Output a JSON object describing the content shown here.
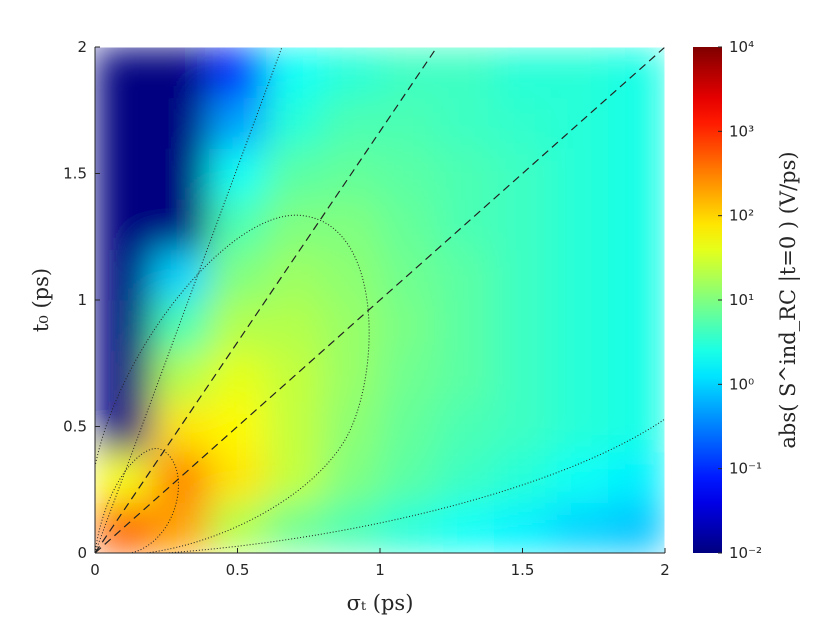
{
  "chart_data": {
    "type": "heatmap",
    "colormap": "jet",
    "x_label": "σₜ (ps)",
    "y_label": "t₀ (ps)",
    "colorbar_label": "abs( S^ind_RC |t=0 ) (V/ps)",
    "x": [
      0.1,
      0.3,
      0.5,
      0.7,
      0.9,
      1.1,
      1.3,
      1.5,
      1.7,
      1.9
    ],
    "y": [
      0.1,
      0.3,
      0.5,
      0.7,
      0.9,
      1.1,
      1.3,
      1.5,
      1.7,
      1.9
    ],
    "z": [
      [
        500,
        200,
        20,
        8,
        5,
        3,
        2,
        1.5,
        1,
        0.8
      ],
      [
        50,
        300,
        80,
        25,
        10,
        6,
        4,
        3,
        2,
        1.5
      ],
      [
        0.01,
        80,
        60,
        25,
        12,
        7,
        5,
        4,
        3,
        2.5
      ],
      [
        0.01,
        20,
        40,
        25,
        14,
        8,
        6,
        4,
        3,
        2.5
      ],
      [
        0.01,
        5,
        20,
        20,
        14,
        9,
        6,
        4,
        3,
        2.5
      ],
      [
        0.01,
        1,
        10,
        15,
        12,
        8,
        6,
        4,
        3,
        2.5
      ],
      [
        0.01,
        0.01,
        5,
        10,
        10,
        7,
        5,
        4,
        3,
        2.5
      ],
      [
        0.01,
        0.01,
        2,
        6,
        7,
        6,
        5,
        4,
        3,
        2.5
      ],
      [
        0.01,
        0.01,
        0.5,
        3,
        5,
        5,
        4,
        3.5,
        3,
        2.5
      ],
      [
        0.01,
        0.01,
        0.1,
        2,
        3,
        4,
        4,
        3,
        3,
        2.5
      ]
    ],
    "xlim": [
      0,
      2
    ],
    "ylim": [
      0,
      2
    ],
    "xticks": [
      0,
      0.5,
      1,
      1.5,
      2
    ],
    "yticks": [
      0,
      0.5,
      1,
      1.5,
      2
    ],
    "clim": [
      0.01,
      10000
    ],
    "clog": true,
    "cticks": [
      {
        "value": 0.01,
        "label": "10⁻²"
      },
      {
        "value": 0.1,
        "label": "10⁻¹"
      },
      {
        "value": 1,
        "label": "10⁰"
      },
      {
        "value": 10,
        "label": "10¹"
      },
      {
        "value": 100,
        "label": "10²"
      },
      {
        "value": 1000,
        "label": "10³"
      },
      {
        "value": 10000,
        "label": "10⁴"
      }
    ]
  }
}
